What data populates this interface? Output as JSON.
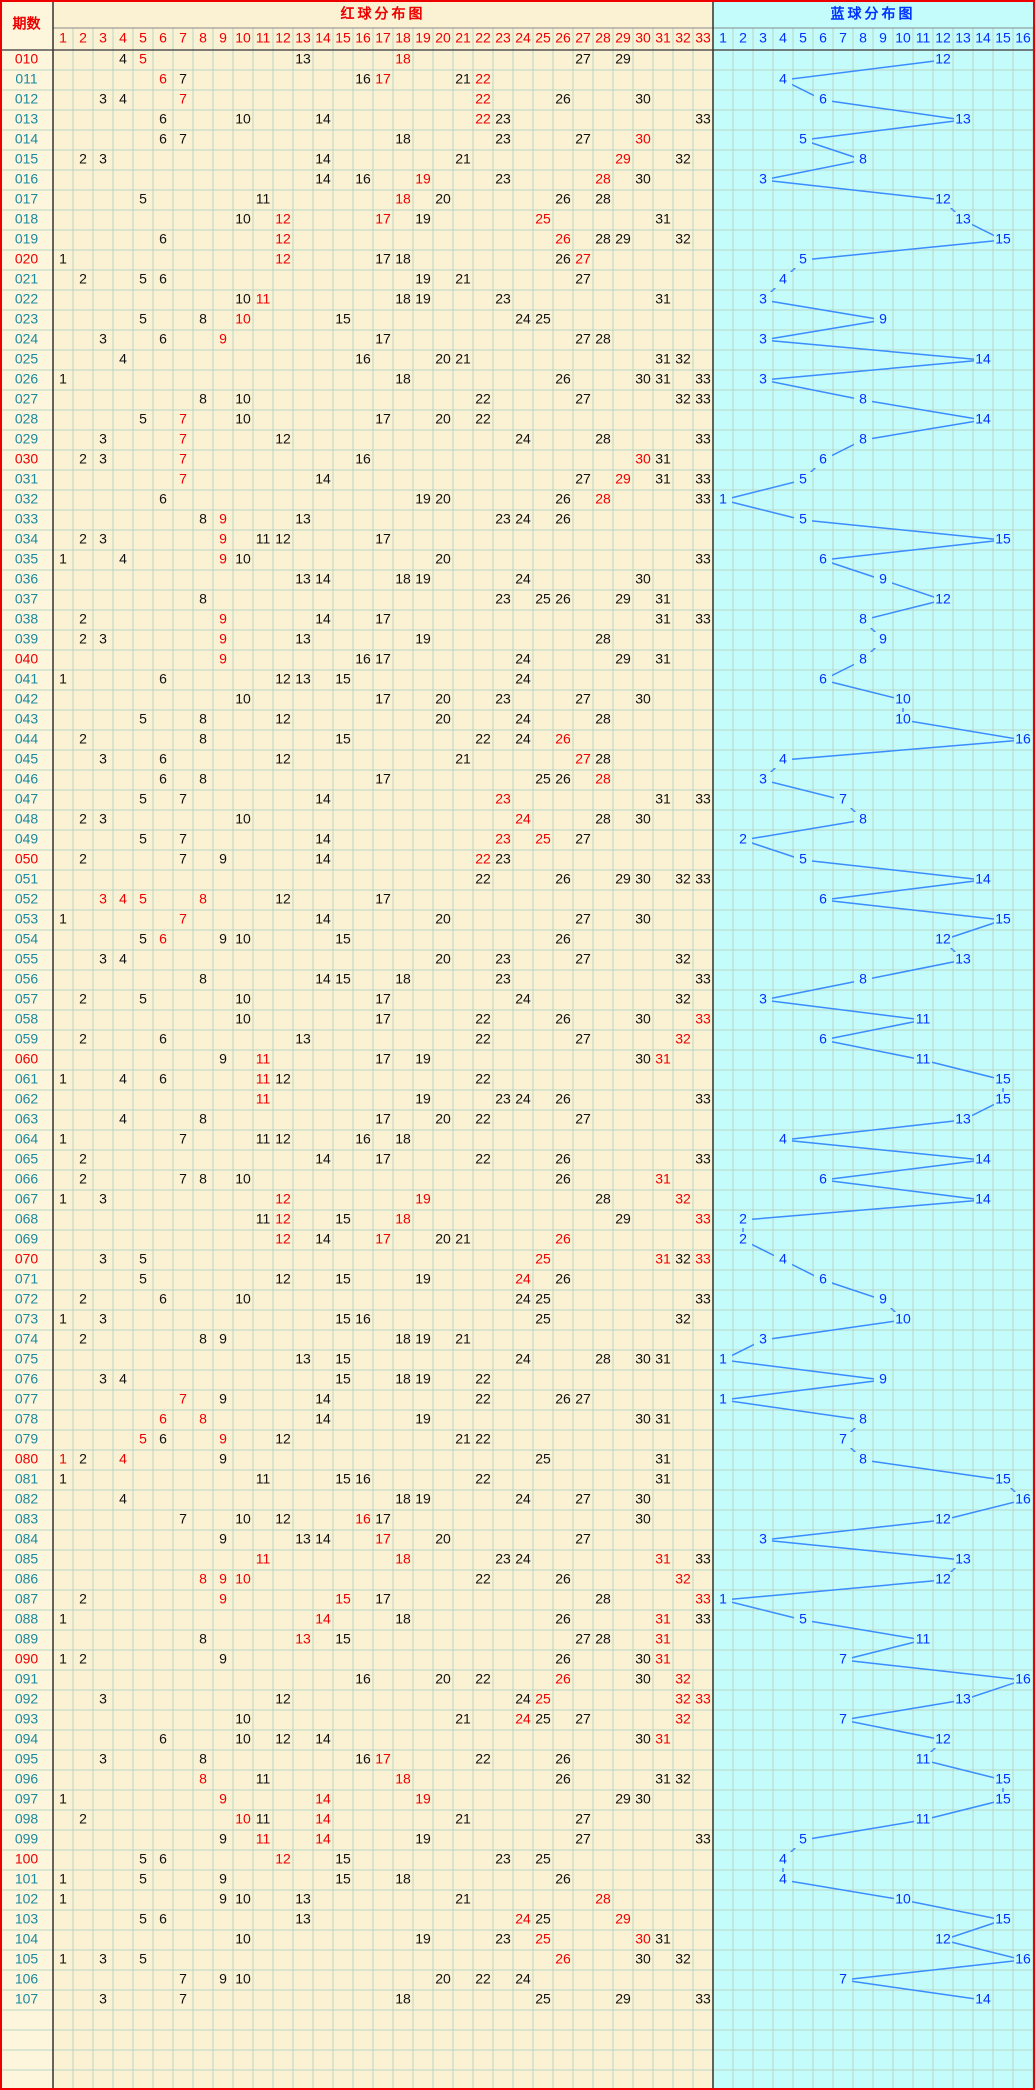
{
  "header": {
    "period_label": "期数",
    "red_title": "红球分布图",
    "blue_title": "蓝球分布图",
    "red_columns": [
      1,
      2,
      3,
      4,
      5,
      6,
      7,
      8,
      9,
      10,
      11,
      12,
      13,
      14,
      15,
      16,
      17,
      18,
      19,
      20,
      21,
      22,
      23,
      24,
      25,
      26,
      27,
      28,
      29,
      30,
      31,
      32,
      33
    ],
    "blue_columns": [
      1,
      2,
      3,
      4,
      5,
      6,
      7,
      8,
      9,
      10,
      11,
      12,
      13,
      14,
      15,
      16
    ]
  },
  "rows": [
    {
      "period": "010",
      "red": [
        4,
        5,
        13,
        18,
        27,
        29
      ],
      "red_hot": [
        5,
        18
      ],
      "blue": 12
    },
    {
      "period": "011",
      "red": [
        6,
        7,
        16,
        17,
        21,
        22
      ],
      "red_hot": [
        6,
        17,
        22
      ],
      "blue": 4
    },
    {
      "period": "012",
      "red": [
        3,
        4,
        7,
        22,
        26,
        30
      ],
      "red_hot": [
        7,
        22
      ],
      "blue": 6
    },
    {
      "period": "013",
      "red": [
        6,
        10,
        14,
        22,
        23,
        33
      ],
      "red_hot": [
        22
      ],
      "blue": 13
    },
    {
      "period": "014",
      "red": [
        6,
        7,
        18,
        23,
        27,
        30
      ],
      "red_hot": [
        30
      ],
      "blue": 5
    },
    {
      "period": "015",
      "red": [
        2,
        3,
        14,
        21,
        29,
        32
      ],
      "red_hot": [
        29
      ],
      "blue": 8
    },
    {
      "period": "016",
      "red": [
        14,
        16,
        19,
        23,
        28,
        30
      ],
      "red_hot": [
        19,
        28
      ],
      "blue": 3
    },
    {
      "period": "017",
      "red": [
        5,
        11,
        18,
        20,
        26,
        28
      ],
      "red_hot": [
        18
      ],
      "blue": 12
    },
    {
      "period": "018",
      "red": [
        10,
        12,
        17,
        19,
        25,
        31
      ],
      "red_hot": [
        12,
        17,
        25
      ],
      "blue": 13
    },
    {
      "period": "019",
      "red": [
        6,
        12,
        26,
        28,
        29,
        32
      ],
      "red_hot": [
        12,
        26
      ],
      "blue": 15
    },
    {
      "period": "020",
      "red": [
        1,
        12,
        17,
        18,
        26,
        27
      ],
      "red_hot": [
        12,
        27
      ],
      "blue": 5
    },
    {
      "period": "021",
      "red": [
        2,
        5,
        6,
        19,
        21,
        27
      ],
      "red_hot": [],
      "blue": 4
    },
    {
      "period": "022",
      "red": [
        10,
        11,
        18,
        19,
        23,
        31
      ],
      "red_hot": [
        11
      ],
      "blue": 3
    },
    {
      "period": "023",
      "red": [
        5,
        8,
        10,
        15,
        24,
        25
      ],
      "red_hot": [
        10
      ],
      "blue": 9
    },
    {
      "period": "024",
      "red": [
        3,
        6,
        9,
        17,
        27,
        28
      ],
      "red_hot": [
        9
      ],
      "blue": 3
    },
    {
      "period": "025",
      "red": [
        4,
        16,
        20,
        21,
        31,
        32
      ],
      "red_hot": [],
      "blue": 14
    },
    {
      "period": "026",
      "red": [
        1,
        18,
        26,
        30,
        31,
        33
      ],
      "red_hot": [],
      "blue": 3
    },
    {
      "period": "027",
      "red": [
        8,
        10,
        22,
        27,
        32,
        33
      ],
      "red_hot": [],
      "blue": 8
    },
    {
      "period": "028",
      "red": [
        5,
        7,
        10,
        17,
        20,
        22
      ],
      "red_hot": [
        7
      ],
      "blue": 14
    },
    {
      "period": "029",
      "red": [
        3,
        7,
        12,
        24,
        28,
        33
      ],
      "red_hot": [
        7
      ],
      "blue": 8
    },
    {
      "period": "030",
      "red": [
        2,
        3,
        7,
        16,
        30,
        31
      ],
      "red_hot": [
        7,
        30
      ],
      "blue": 6
    },
    {
      "period": "031",
      "red": [
        7,
        14,
        27,
        29,
        31,
        33
      ],
      "red_hot": [
        7,
        29
      ],
      "blue": 5
    },
    {
      "period": "032",
      "red": [
        6,
        19,
        20,
        26,
        28,
        33
      ],
      "red_hot": [
        28
      ],
      "blue": 1
    },
    {
      "period": "033",
      "red": [
        8,
        9,
        13,
        23,
        24,
        26
      ],
      "red_hot": [
        9
      ],
      "blue": 5
    },
    {
      "period": "034",
      "red": [
        2,
        3,
        9,
        11,
        12,
        17
      ],
      "red_hot": [
        9
      ],
      "blue": 15
    },
    {
      "period": "035",
      "red": [
        1,
        4,
        9,
        10,
        20,
        33
      ],
      "red_hot": [
        9
      ],
      "blue": 6
    },
    {
      "period": "036",
      "red": [
        13,
        14,
        18,
        19,
        24,
        30
      ],
      "red_hot": [],
      "blue": 9
    },
    {
      "period": "037",
      "red": [
        8,
        23,
        25,
        26,
        29,
        31
      ],
      "red_hot": [],
      "blue": 12
    },
    {
      "period": "038",
      "red": [
        2,
        9,
        14,
        17,
        31,
        33
      ],
      "red_hot": [
        9
      ],
      "blue": 8
    },
    {
      "period": "039",
      "red": [
        2,
        3,
        9,
        13,
        19,
        28
      ],
      "red_hot": [
        9
      ],
      "blue": 9
    },
    {
      "period": "040",
      "red": [
        9,
        16,
        17,
        24,
        29,
        31
      ],
      "red_hot": [
        9
      ],
      "blue": 8
    },
    {
      "period": "041",
      "red": [
        1,
        6,
        12,
        13,
        15,
        24
      ],
      "red_hot": [],
      "blue": 6
    },
    {
      "period": "042",
      "red": [
        10,
        17,
        20,
        23,
        27,
        30
      ],
      "red_hot": [],
      "blue": 10
    },
    {
      "period": "043",
      "red": [
        5,
        8,
        12,
        20,
        24,
        28
      ],
      "red_hot": [],
      "blue": 10
    },
    {
      "period": "044",
      "red": [
        2,
        8,
        15,
        22,
        24,
        26
      ],
      "red_hot": [
        26
      ],
      "blue": 16
    },
    {
      "period": "045",
      "red": [
        3,
        6,
        12,
        21,
        27,
        28
      ],
      "red_hot": [
        27
      ],
      "blue": 4
    },
    {
      "period": "046",
      "red": [
        6,
        8,
        17,
        25,
        26,
        28
      ],
      "red_hot": [
        28
      ],
      "blue": 3
    },
    {
      "period": "047",
      "red": [
        5,
        7,
        14,
        23,
        31,
        33
      ],
      "red_hot": [
        23
      ],
      "blue": 7
    },
    {
      "period": "048",
      "red": [
        2,
        3,
        10,
        24,
        28,
        30
      ],
      "red_hot": [
        24
      ],
      "blue": 8
    },
    {
      "period": "049",
      "red": [
        5,
        7,
        14,
        23,
        25,
        27
      ],
      "red_hot": [
        23,
        25
      ],
      "blue": 2
    },
    {
      "period": "050",
      "red": [
        2,
        7,
        9,
        14,
        22,
        23
      ],
      "red_hot": [
        22
      ],
      "blue": 5
    },
    {
      "period": "051",
      "red": [
        22,
        26,
        29,
        30,
        32,
        33
      ],
      "red_hot": [],
      "blue": 14
    },
    {
      "period": "052",
      "red": [
        3,
        4,
        5,
        8,
        12,
        17
      ],
      "red_hot": [
        3,
        4,
        5,
        8
      ],
      "blue": 6
    },
    {
      "period": "053",
      "red": [
        1,
        7,
        14,
        20,
        27,
        30
      ],
      "red_hot": [
        7
      ],
      "blue": 15
    },
    {
      "period": "054",
      "red": [
        5,
        6,
        9,
        10,
        15,
        26
      ],
      "red_hot": [
        6
      ],
      "blue": 12
    },
    {
      "period": "055",
      "red": [
        3,
        4,
        20,
        23,
        27,
        32
      ],
      "red_hot": [],
      "blue": 13
    },
    {
      "period": "056",
      "red": [
        8,
        14,
        15,
        18,
        23,
        33
      ],
      "red_hot": [],
      "blue": 8
    },
    {
      "period": "057",
      "red": [
        2,
        5,
        10,
        17,
        24,
        32
      ],
      "red_hot": [],
      "blue": 3
    },
    {
      "period": "058",
      "red": [
        10,
        17,
        22,
        26,
        30,
        33
      ],
      "red_hot": [
        33
      ],
      "blue": 11
    },
    {
      "period": "059",
      "red": [
        2,
        6,
        13,
        22,
        27,
        32
      ],
      "red_hot": [
        32
      ],
      "blue": 6
    },
    {
      "period": "060",
      "red": [
        9,
        11,
        17,
        19,
        30,
        31
      ],
      "red_hot": [
        11,
        31
      ],
      "blue": 11
    },
    {
      "period": "061",
      "red": [
        1,
        4,
        6,
        11,
        12,
        22
      ],
      "red_hot": [
        11
      ],
      "blue": 15
    },
    {
      "period": "062",
      "red": [
        11,
        19,
        23,
        24,
        26,
        33
      ],
      "red_hot": [
        11
      ],
      "blue": 15
    },
    {
      "period": "063",
      "red": [
        4,
        8,
        17,
        20,
        22,
        27
      ],
      "red_hot": [],
      "blue": 13
    },
    {
      "period": "064",
      "red": [
        1,
        7,
        11,
        12,
        16,
        18
      ],
      "red_hot": [],
      "blue": 4
    },
    {
      "period": "065",
      "red": [
        2,
        14,
        17,
        22,
        26,
        33
      ],
      "red_hot": [],
      "blue": 14
    },
    {
      "period": "066",
      "red": [
        2,
        7,
        8,
        10,
        26,
        31
      ],
      "red_hot": [
        31
      ],
      "blue": 6
    },
    {
      "period": "067",
      "red": [
        1,
        3,
        12,
        19,
        28,
        32
      ],
      "red_hot": [
        12,
        19,
        32
      ],
      "blue": 14
    },
    {
      "period": "068",
      "red": [
        11,
        12,
        15,
        18,
        29,
        33
      ],
      "red_hot": [
        12,
        18,
        33
      ],
      "blue": 2
    },
    {
      "period": "069",
      "red": [
        12,
        14,
        17,
        20,
        21,
        26
      ],
      "red_hot": [
        12,
        17,
        26
      ],
      "blue": 2
    },
    {
      "period": "070",
      "red": [
        3,
        5,
        25,
        31,
        32,
        33
      ],
      "red_hot": [
        25,
        31,
        33
      ],
      "blue": 4
    },
    {
      "period": "071",
      "red": [
        5,
        12,
        15,
        19,
        24,
        26
      ],
      "red_hot": [
        24
      ],
      "blue": 6
    },
    {
      "period": "072",
      "red": [
        2,
        6,
        10,
        24,
        25,
        33
      ],
      "red_hot": [],
      "blue": 9
    },
    {
      "period": "073",
      "red": [
        1,
        3,
        15,
        16,
        25,
        32
      ],
      "red_hot": [],
      "blue": 10
    },
    {
      "period": "074",
      "red": [
        2,
        8,
        9,
        18,
        19,
        21
      ],
      "red_hot": [],
      "blue": 3
    },
    {
      "period": "075",
      "red": [
        13,
        15,
        24,
        28,
        30,
        31
      ],
      "red_hot": [],
      "blue": 1
    },
    {
      "period": "076",
      "red": [
        3,
        4,
        15,
        18,
        19,
        22
      ],
      "red_hot": [],
      "blue": 9
    },
    {
      "period": "077",
      "red": [
        7,
        9,
        14,
        22,
        26,
        27
      ],
      "red_hot": [
        7
      ],
      "blue": 1
    },
    {
      "period": "078",
      "red": [
        6,
        8,
        14,
        19,
        30,
        31
      ],
      "red_hot": [
        6,
        8
      ],
      "blue": 8
    },
    {
      "period": "079",
      "red": [
        5,
        6,
        9,
        12,
        21,
        22
      ],
      "red_hot": [
        5,
        9
      ],
      "blue": 7
    },
    {
      "period": "080",
      "red": [
        1,
        2,
        4,
        9,
        25,
        31
      ],
      "red_hot": [
        1,
        4
      ],
      "blue": 8
    },
    {
      "period": "081",
      "red": [
        1,
        11,
        15,
        16,
        22,
        31
      ],
      "red_hot": [],
      "blue": 15
    },
    {
      "period": "082",
      "red": [
        4,
        18,
        19,
        24,
        27,
        30
      ],
      "red_hot": [],
      "blue": 16
    },
    {
      "period": "083",
      "red": [
        7,
        10,
        12,
        16,
        17,
        30
      ],
      "red_hot": [
        16
      ],
      "blue": 12
    },
    {
      "period": "084",
      "red": [
        9,
        13,
        14,
        17,
        20,
        27
      ],
      "red_hot": [
        17
      ],
      "blue": 3
    },
    {
      "period": "085",
      "red": [
        11,
        18,
        23,
        24,
        31,
        33
      ],
      "red_hot": [
        11,
        18,
        31
      ],
      "blue": 13
    },
    {
      "period": "086",
      "red": [
        8,
        9,
        10,
        22,
        26,
        32
      ],
      "red_hot": [
        8,
        9,
        10,
        32
      ],
      "blue": 12
    },
    {
      "period": "087",
      "red": [
        2,
        9,
        15,
        17,
        28,
        33
      ],
      "red_hot": [
        9,
        15,
        33
      ],
      "blue": 1
    },
    {
      "period": "088",
      "red": [
        1,
        14,
        18,
        26,
        31,
        33
      ],
      "red_hot": [
        14,
        31
      ],
      "blue": 5
    },
    {
      "period": "089",
      "red": [
        8,
        13,
        15,
        27,
        28,
        31
      ],
      "red_hot": [
        13,
        31
      ],
      "blue": 11
    },
    {
      "period": "090",
      "red": [
        1,
        2,
        9,
        26,
        30,
        31
      ],
      "red_hot": [
        31
      ],
      "blue": 7
    },
    {
      "period": "091",
      "red": [
        16,
        20,
        22,
        26,
        30,
        32
      ],
      "red_hot": [
        26,
        32
      ],
      "blue": 16
    },
    {
      "period": "092",
      "red": [
        3,
        12,
        24,
        25,
        32,
        33
      ],
      "red_hot": [
        25,
        32,
        33
      ],
      "blue": 13
    },
    {
      "period": "093",
      "red": [
        10,
        21,
        24,
        25,
        27,
        32
      ],
      "red_hot": [
        24,
        32
      ],
      "blue": 7
    },
    {
      "period": "094",
      "red": [
        6,
        10,
        12,
        14,
        30,
        31
      ],
      "red_hot": [
        31
      ],
      "blue": 12
    },
    {
      "period": "095",
      "red": [
        3,
        8,
        16,
        17,
        22,
        26
      ],
      "red_hot": [
        17
      ],
      "blue": 11
    },
    {
      "period": "096",
      "red": [
        8,
        11,
        18,
        26,
        31,
        32
      ],
      "red_hot": [
        8,
        18
      ],
      "blue": 15
    },
    {
      "period": "097",
      "red": [
        1,
        9,
        14,
        19,
        29,
        30
      ],
      "red_hot": [
        9,
        14,
        19
      ],
      "blue": 15
    },
    {
      "period": "098",
      "red": [
        2,
        10,
        11,
        14,
        21,
        27
      ],
      "red_hot": [
        10,
        14
      ],
      "blue": 11
    },
    {
      "period": "099",
      "red": [
        9,
        11,
        14,
        19,
        27,
        33
      ],
      "red_hot": [
        11,
        14
      ],
      "blue": 5
    },
    {
      "period": "100",
      "red": [
        5,
        6,
        12,
        15,
        23,
        25
      ],
      "red_hot": [
        12
      ],
      "blue": 4
    },
    {
      "period": "101",
      "red": [
        1,
        5,
        9,
        15,
        18,
        26
      ],
      "red_hot": [],
      "blue": 4
    },
    {
      "period": "102",
      "red": [
        1,
        9,
        10,
        13,
        21,
        28
      ],
      "red_hot": [
        28
      ],
      "blue": 10
    },
    {
      "period": "103",
      "red": [
        5,
        6,
        13,
        24,
        25,
        29
      ],
      "red_hot": [
        24,
        29
      ],
      "blue": 15
    },
    {
      "period": "104",
      "red": [
        10,
        19,
        23,
        25,
        30,
        31
      ],
      "red_hot": [
        25,
        30
      ],
      "blue": 12
    },
    {
      "period": "105",
      "red": [
        1,
        3,
        5,
        26,
        30,
        32
      ],
      "red_hot": [
        26
      ],
      "blue": 16
    },
    {
      "period": "106",
      "red": [
        7,
        9,
        10,
        20,
        22,
        24
      ],
      "red_hot": [],
      "blue": 7
    },
    {
      "period": "107",
      "red": [
        3,
        7,
        18,
        25,
        29,
        33
      ],
      "red_hot": [],
      "blue": 14
    }
  ]
}
